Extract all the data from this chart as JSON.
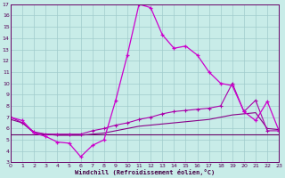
{
  "bg_color": "#c8ece8",
  "grid_color": "#a0cccc",
  "xlim": [
    0,
    23
  ],
  "ylim": [
    3,
    17
  ],
  "yticks": [
    3,
    4,
    5,
    6,
    7,
    8,
    9,
    10,
    11,
    12,
    13,
    14,
    15,
    16,
    17
  ],
  "xticks": [
    0,
    1,
    2,
    3,
    4,
    5,
    6,
    7,
    8,
    9,
    10,
    11,
    12,
    13,
    14,
    15,
    16,
    17,
    18,
    19,
    20,
    21,
    22,
    23
  ],
  "xlabel": "Windchill (Refroidissement éolien,°C)",
  "line1_x": [
    0,
    1,
    2,
    3,
    4,
    5,
    6,
    7,
    8,
    9,
    10,
    11,
    12,
    13,
    14,
    15,
    16,
    17,
    18,
    19,
    20,
    21,
    22,
    23
  ],
  "line1_y": [
    7.0,
    6.7,
    5.6,
    5.3,
    4.8,
    4.7,
    3.5,
    4.5,
    5.0,
    8.5,
    12.5,
    17.0,
    16.7,
    14.3,
    13.1,
    13.3,
    12.5,
    11.0,
    10.0,
    9.8,
    7.5,
    6.7,
    8.4,
    5.8
  ],
  "line1_color": "#cc00cc",
  "line1_marker": "+",
  "line2_x": [
    0,
    1,
    2,
    3,
    4,
    5,
    6,
    7,
    8,
    9,
    10,
    11,
    12,
    13,
    14,
    15,
    16,
    17,
    18,
    19,
    20,
    21,
    22,
    23
  ],
  "line2_y": [
    7.0,
    6.5,
    5.7,
    5.5,
    5.5,
    5.5,
    5.5,
    5.8,
    6.0,
    6.3,
    6.5,
    6.8,
    7.0,
    7.3,
    7.5,
    7.6,
    7.7,
    7.8,
    8.0,
    10.0,
    7.5,
    8.5,
    5.8,
    5.8
  ],
  "line2_color": "#aa00aa",
  "line2_marker": "+",
  "line3_x": [
    0,
    1,
    2,
    3,
    4,
    5,
    6,
    7,
    8,
    9,
    10,
    11,
    12,
    13,
    14,
    15,
    16,
    17,
    18,
    19,
    20,
    21,
    22,
    23
  ],
  "line3_y": [
    6.8,
    6.5,
    5.6,
    5.5,
    5.4,
    5.4,
    5.4,
    5.5,
    5.6,
    5.8,
    6.0,
    6.2,
    6.3,
    6.4,
    6.5,
    6.6,
    6.7,
    6.8,
    7.0,
    7.2,
    7.3,
    7.4,
    6.0,
    5.9
  ],
  "line3_color": "#880088",
  "line4_x": [
    0,
    1,
    2,
    3,
    4,
    5,
    6,
    7,
    8,
    9,
    10,
    11,
    12,
    13,
    14,
    15,
    16,
    17,
    18,
    19,
    20,
    21,
    22,
    23
  ],
  "line4_y": [
    5.5,
    5.5,
    5.5,
    5.5,
    5.5,
    5.5,
    5.5,
    5.5,
    5.5,
    5.5,
    5.5,
    5.5,
    5.5,
    5.5,
    5.5,
    5.5,
    5.5,
    5.5,
    5.5,
    5.5,
    5.5,
    5.5,
    5.5,
    5.5
  ],
  "line4_color": "#660066"
}
